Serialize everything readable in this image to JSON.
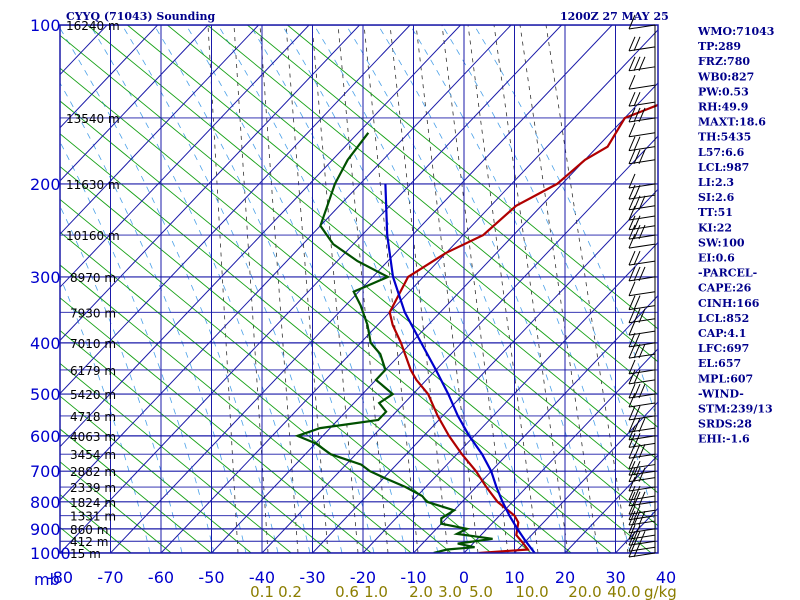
{
  "chart_data": {
    "type": "line",
    "title": "CYYQ (71043) Sounding",
    "valid_time": "1200Z 27 MAY 25",
    "x_axis": {
      "label": "",
      "ticks": [
        -80,
        -70,
        -60,
        -50,
        -40,
        -30,
        -20,
        -10,
        0,
        10,
        20,
        30,
        40
      ]
    },
    "y_axis": {
      "label": "mb",
      "scale": "log",
      "ticks": [
        100,
        200,
        300,
        400,
        500,
        600,
        700,
        800,
        900,
        1000
      ]
    },
    "mixing_ratio_labels": [
      "0.1",
      "0.2",
      "0.6",
      "1.0",
      "2.0",
      "3.0",
      "5.0",
      "10.0",
      "20.0",
      "40.0"
    ],
    "mixing_ratio_unit": "g/kg",
    "height_labels": [
      {
        "p": 100,
        "label": "16240 m"
      },
      {
        "p": 150,
        "label": "13540 m"
      },
      {
        "p": 200,
        "label": "11630 m"
      },
      {
        "p": 250,
        "label": "10160 m"
      },
      {
        "p": 300,
        "label": "8970 m"
      },
      {
        "p": 350,
        "label": "7930 m"
      },
      {
        "p": 400,
        "label": "7010 m"
      },
      {
        "p": 450,
        "label": "6179 m"
      },
      {
        "p": 500,
        "label": "5420 m"
      },
      {
        "p": 550,
        "label": "4718 m"
      },
      {
        "p": 600,
        "label": "4063 m"
      },
      {
        "p": 650,
        "label": "3454 m"
      },
      {
        "p": 700,
        "label": "2882 m"
      },
      {
        "p": 750,
        "label": "2339 m"
      },
      {
        "p": 800,
        "label": "1824 m"
      },
      {
        "p": 850,
        "label": "1331 m"
      },
      {
        "p": 900,
        "label": "860 m"
      },
      {
        "p": 950,
        "label": "412 m"
      },
      {
        "p": 1000,
        "label": "15 m"
      }
    ],
    "series": [
      {
        "key": "temperature",
        "color": "#b00000",
        "points": [
          [
            1000,
            3
          ],
          [
            985,
            12
          ],
          [
            960,
            10
          ],
          [
            925,
            7
          ],
          [
            875,
            5
          ],
          [
            850,
            3
          ],
          [
            800,
            -3
          ],
          [
            750,
            -8
          ],
          [
            700,
            -13
          ],
          [
            650,
            -19
          ],
          [
            600,
            -25
          ],
          [
            550,
            -31
          ],
          [
            500,
            -37
          ],
          [
            470,
            -42
          ],
          [
            450,
            -45
          ],
          [
            400,
            -52
          ],
          [
            370,
            -57
          ],
          [
            350,
            -60
          ],
          [
            300,
            -63
          ],
          [
            270,
            -60
          ],
          [
            250,
            -56
          ],
          [
            220,
            -55
          ],
          [
            200,
            -51
          ],
          [
            180,
            -50
          ],
          [
            170,
            -48
          ],
          [
            150,
            -50
          ],
          [
            140,
            -45
          ],
          [
            130,
            -48
          ],
          [
            120,
            -45
          ],
          [
            110,
            -47
          ],
          [
            100,
            -42
          ]
        ]
      },
      {
        "key": "dewpoint",
        "color": "#005000",
        "points": [
          [
            1000,
            -6
          ],
          [
            985,
            -4
          ],
          [
            975,
            1
          ],
          [
            960,
            -3
          ],
          [
            940,
            3
          ],
          [
            920,
            -5
          ],
          [
            900,
            -4
          ],
          [
            880,
            -10
          ],
          [
            860,
            -11
          ],
          [
            830,
            -10
          ],
          [
            800,
            -17
          ],
          [
            780,
            -19
          ],
          [
            750,
            -24
          ],
          [
            720,
            -30
          ],
          [
            700,
            -34
          ],
          [
            680,
            -37
          ],
          [
            650,
            -45
          ],
          [
            620,
            -50
          ],
          [
            600,
            -55
          ],
          [
            580,
            -52
          ],
          [
            560,
            -42
          ],
          [
            540,
            -42
          ],
          [
            520,
            -45
          ],
          [
            500,
            -44
          ],
          [
            470,
            -50
          ],
          [
            450,
            -50
          ],
          [
            420,
            -54
          ],
          [
            400,
            -58
          ],
          [
            370,
            -62
          ],
          [
            340,
            -67
          ],
          [
            320,
            -71
          ],
          [
            300,
            -67
          ],
          [
            280,
            -76
          ],
          [
            260,
            -84
          ],
          [
            240,
            -90
          ],
          [
            200,
            -95
          ],
          [
            180,
            -97
          ],
          [
            160,
            -98
          ]
        ]
      },
      {
        "key": "parcel",
        "color": "#0000cc",
        "points": [
          [
            1000,
            14
          ],
          [
            950,
            10
          ],
          [
            900,
            6
          ],
          [
            850,
            2
          ],
          [
            800,
            -2
          ],
          [
            750,
            -6
          ],
          [
            700,
            -10
          ],
          [
            650,
            -15
          ],
          [
            600,
            -21
          ],
          [
            550,
            -27
          ],
          [
            500,
            -33
          ],
          [
            450,
            -40
          ],
          [
            400,
            -48
          ],
          [
            350,
            -57
          ],
          [
            300,
            -66
          ],
          [
            250,
            -75
          ],
          [
            200,
            -85
          ]
        ]
      }
    ],
    "wind_levels_mb": [
      100,
      110,
      120,
      130,
      140,
      150,
      160,
      170,
      180,
      200,
      210,
      220,
      230,
      240,
      250,
      260,
      280,
      300,
      320,
      340,
      360,
      380,
      400,
      420,
      450,
      470,
      500,
      520,
      550,
      580,
      600,
      620,
      650,
      680,
      700,
      720,
      750,
      780,
      800,
      830,
      850,
      870,
      900,
      925,
      950,
      975,
      1000
    ],
    "grid": true
  },
  "indices": [
    "WMO:71043",
    "TP:289",
    "FRZ:780",
    "WB0:827",
    "PW:0.53",
    "RH:49.9",
    "MAXT:18.6",
    "TH:5435",
    "L57:6.6",
    "LCL:987",
    "LI:2.3",
    "SI:2.6",
    "TT:51",
    "KI:22",
    "SW:100",
    "EI:0.6",
    "-PARCEL-",
    "CAPE:26",
    "CINH:166",
    "LCL:852",
    "CAP:4.1",
    "LFC:697",
    "EL:657",
    "MPL:607",
    "-WIND-",
    "STM:239/13",
    "SRDS:28",
    "EHI:-1.6"
  ]
}
